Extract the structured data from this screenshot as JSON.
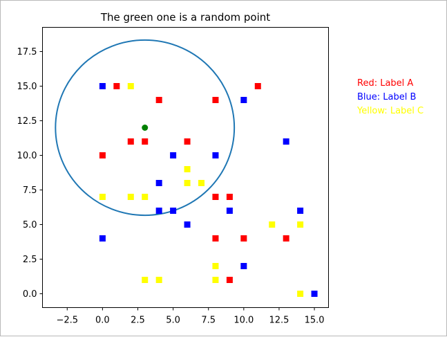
{
  "chart_data": {
    "type": "scatter",
    "title": "The green one is a random point",
    "xlabel": "",
    "ylabel": "",
    "xlim": [
      -4.25,
      16.0
    ],
    "ylim": [
      -1.0,
      19.25
    ],
    "xticks": [
      -2.5,
      0.0,
      2.5,
      5.0,
      7.5,
      10.0,
      12.5,
      15.0
    ],
    "xtick_labels": [
      "−2.5",
      "0.0",
      "2.5",
      "5.0",
      "7.5",
      "10.0",
      "12.5",
      "15.0"
    ],
    "yticks": [
      0.0,
      2.5,
      5.0,
      7.5,
      10.0,
      12.5,
      15.0,
      17.5
    ],
    "ytick_labels": [
      "0.0",
      "2.5",
      "5.0",
      "7.5",
      "10.0",
      "12.5",
      "15.0",
      "17.5"
    ],
    "grid": false,
    "legend_position": "outside-right",
    "series": [
      {
        "name": "Red: Label A",
        "color": "#ff0000",
        "marker": "square",
        "points": [
          [
            1,
            15
          ],
          [
            4,
            14
          ],
          [
            8,
            14
          ],
          [
            11,
            15
          ],
          [
            2,
            11
          ],
          [
            3,
            11
          ],
          [
            6,
            11
          ],
          [
            0,
            10
          ],
          [
            8,
            7
          ],
          [
            9,
            7
          ],
          [
            8,
            4
          ],
          [
            10,
            4
          ],
          [
            13,
            4
          ],
          [
            9,
            1
          ]
        ]
      },
      {
        "name": "Blue: Label B",
        "color": "#0000ff",
        "marker": "square",
        "points": [
          [
            0,
            15
          ],
          [
            10,
            14
          ],
          [
            13,
            11
          ],
          [
            5,
            10
          ],
          [
            8,
            10
          ],
          [
            4,
            8
          ],
          [
            4,
            6
          ],
          [
            5,
            6
          ],
          [
            9,
            6
          ],
          [
            14,
            6
          ],
          [
            6,
            5
          ],
          [
            0,
            4
          ],
          [
            10,
            2
          ],
          [
            15,
            0
          ]
        ]
      },
      {
        "name": "Yellow: Label C",
        "color": "#ffff00",
        "marker": "square",
        "points": [
          [
            2,
            15
          ],
          [
            6,
            9
          ],
          [
            6,
            8
          ],
          [
            7,
            8
          ],
          [
            0,
            7
          ],
          [
            2,
            7
          ],
          [
            3,
            7
          ],
          [
            12,
            5
          ],
          [
            14,
            5
          ],
          [
            8,
            2
          ],
          [
            3,
            1
          ],
          [
            4,
            1
          ],
          [
            8,
            1
          ],
          [
            14,
            0
          ]
        ]
      }
    ],
    "random_point": {
      "x": 3,
      "y": 12,
      "color": "#008000"
    },
    "circle": {
      "center": [
        3,
        12
      ],
      "radius": 6.33,
      "color": "#1f77b4"
    }
  }
}
